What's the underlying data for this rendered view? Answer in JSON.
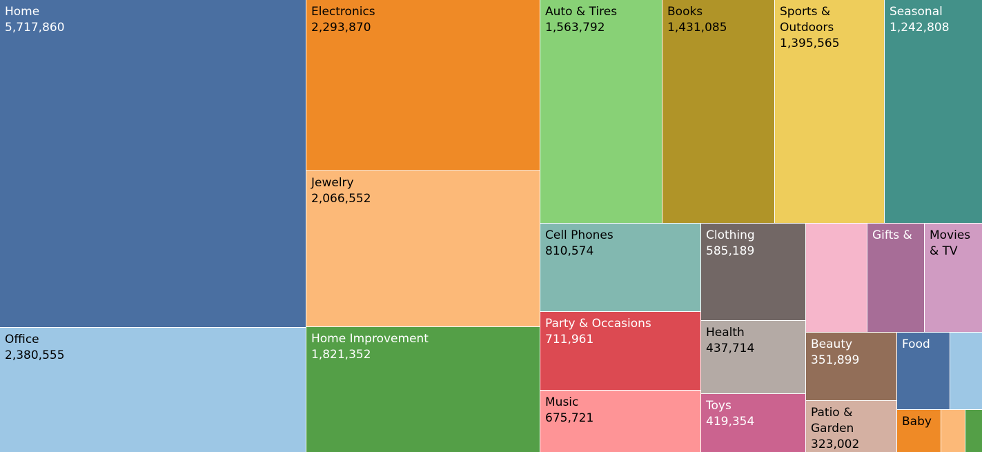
{
  "chart_data": {
    "type": "treemap",
    "tiles": [
      {
        "label": "Home",
        "value": "5,717,860",
        "color": "#4a6fa1",
        "text": "dark"
      },
      {
        "label": "Office",
        "value": "2,380,555",
        "color": "#9dc7e5",
        "text": "light"
      },
      {
        "label": "Electronics",
        "value": "2,293,870",
        "color": "#ef8a26",
        "text": "light"
      },
      {
        "label": "Jewelry",
        "value": "2,066,552",
        "color": "#fcb978",
        "text": "light"
      },
      {
        "label": "Home Improvement",
        "value": "1,821,352",
        "color": "#549f47",
        "text": "dark"
      },
      {
        "label": "Auto & Tires",
        "value": "1,563,792",
        "color": "#88d176",
        "text": "light"
      },
      {
        "label": "Books",
        "value": "1,431,085",
        "color": "#b09428",
        "text": "light"
      },
      {
        "label": "Sports & Outdoors",
        "value": "1,395,565",
        "color": "#eecd5b",
        "text": "light"
      },
      {
        "label": "Seasonal",
        "value": "1,242,808",
        "color": "#439189",
        "text": "dark"
      },
      {
        "label": "Cell Phones",
        "value": "810,574",
        "color": "#82b8b0",
        "text": "light"
      },
      {
        "label": "Party & Occasions",
        "value": "711,961",
        "color": "#dc4a52",
        "text": "dark"
      },
      {
        "label": "Music",
        "value": "675,721",
        "color": "#fe9496",
        "text": "light"
      },
      {
        "label": "Clothing",
        "value": "585,189",
        "color": "#726765",
        "text": "dark"
      },
      {
        "label": "Health",
        "value": "437,714",
        "color": "#b4aaa5",
        "text": "light"
      },
      {
        "label": "Toys",
        "value": "419,354",
        "color": "#cb638f",
        "text": "dark"
      },
      {
        "label": "",
        "value": "",
        "color": "#f6b6cb",
        "text": "light"
      },
      {
        "label": "Gifts &",
        "value": "",
        "color": "#a76d97",
        "text": "dark"
      },
      {
        "label": "Movies & TV",
        "value": "",
        "color": "#d09bc2",
        "text": "light"
      },
      {
        "label": "Beauty",
        "value": "351,899",
        "color": "#926e58",
        "text": "dark"
      },
      {
        "label": "Patio & Garden",
        "value": "323,002",
        "color": "#d4b0a2",
        "text": "light"
      },
      {
        "label": "Food",
        "value": "",
        "color": "#4a6fa1",
        "text": "dark"
      },
      {
        "label": "",
        "value": "",
        "color": "#9dc7e5",
        "text": "light"
      },
      {
        "label": "Baby",
        "value": "",
        "color": "#ef8a26",
        "text": "light"
      },
      {
        "label": "",
        "value": "",
        "color": "#fcb978",
        "text": "light"
      },
      {
        "label": "",
        "value": "",
        "color": "#549f47",
        "text": "light"
      }
    ]
  }
}
